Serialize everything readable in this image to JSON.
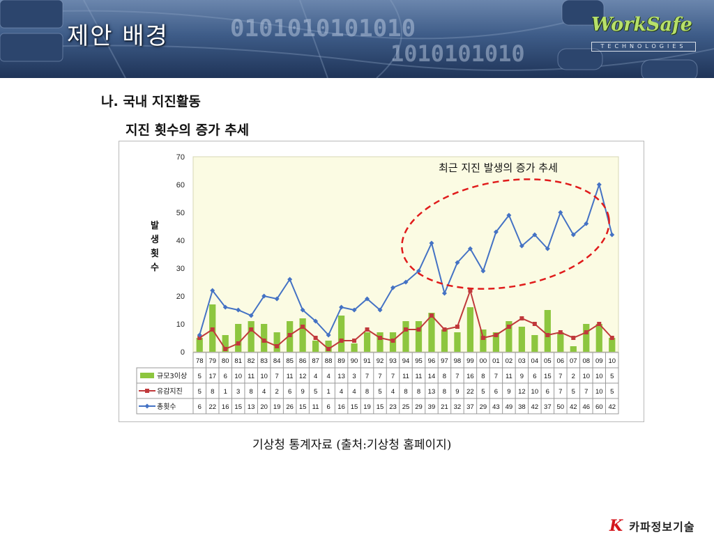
{
  "slide": {
    "title": "제안 배경",
    "section_heading": "나. 국내 지진활동",
    "chart_heading": "지진 횟수의 증가 추세",
    "source_note": "기상청 통계자료 (출처:기상청 홈페이지)"
  },
  "branding": {
    "logo_main": "WorkSafe",
    "logo_sub": "TECHNOLOGIES",
    "footer_mark": "K",
    "footer_company": "카파정보기술"
  },
  "colors": {
    "bar": "#8dc63f",
    "felt_line": "#c0393b",
    "total_line": "#4472c4",
    "plot_bg": "#fbfbe3",
    "highlight": "#e01b1b",
    "brand_red": "#d4161d"
  },
  "chart_data": {
    "type": "bar",
    "title": "",
    "ylabel": "발생횟수",
    "ylim": [
      0,
      70
    ],
    "yticks": [
      0,
      10,
      20,
      30,
      40,
      50,
      60,
      70
    ],
    "grid": false,
    "legend_placement": "data-table-left",
    "annotation": "최근 지진 발생의 증가 추세",
    "categories": [
      "78",
      "79",
      "80",
      "81",
      "82",
      "83",
      "84",
      "85",
      "86",
      "87",
      "88",
      "89",
      "90",
      "91",
      "92",
      "93",
      "94",
      "95",
      "96",
      "97",
      "98",
      "99",
      "00",
      "01",
      "02",
      "03",
      "04",
      "05",
      "06",
      "07",
      "08",
      "09",
      "10"
    ],
    "series": [
      {
        "name": "규모3이상",
        "kind": "bar",
        "values": [
          5,
          17,
          6,
          10,
          11,
          10,
          7,
          11,
          12,
          4,
          4,
          13,
          3,
          7,
          7,
          7,
          11,
          11,
          14,
          8,
          7,
          16,
          8,
          7,
          11,
          9,
          6,
          15,
          7,
          2,
          10,
          10,
          5
        ]
      },
      {
        "name": "유감지진",
        "kind": "line",
        "marker": "square",
        "values": [
          5,
          8,
          1,
          3,
          8,
          4,
          2,
          6,
          9,
          5,
          1,
          4,
          4,
          8,
          5,
          4,
          8,
          8,
          13,
          8,
          9,
          22,
          5,
          6,
          9,
          12,
          10,
          6,
          7,
          5,
          7,
          10,
          5
        ]
      },
      {
        "name": "총횟수",
        "kind": "line",
        "marker": "diamond",
        "values": [
          6,
          22,
          16,
          15,
          13,
          20,
          19,
          26,
          15,
          11,
          6,
          16,
          15,
          19,
          15,
          23,
          25,
          29,
          39,
          21,
          32,
          37,
          29,
          43,
          49,
          38,
          42,
          37,
          50,
          42,
          46,
          60,
          42
        ]
      }
    ]
  }
}
